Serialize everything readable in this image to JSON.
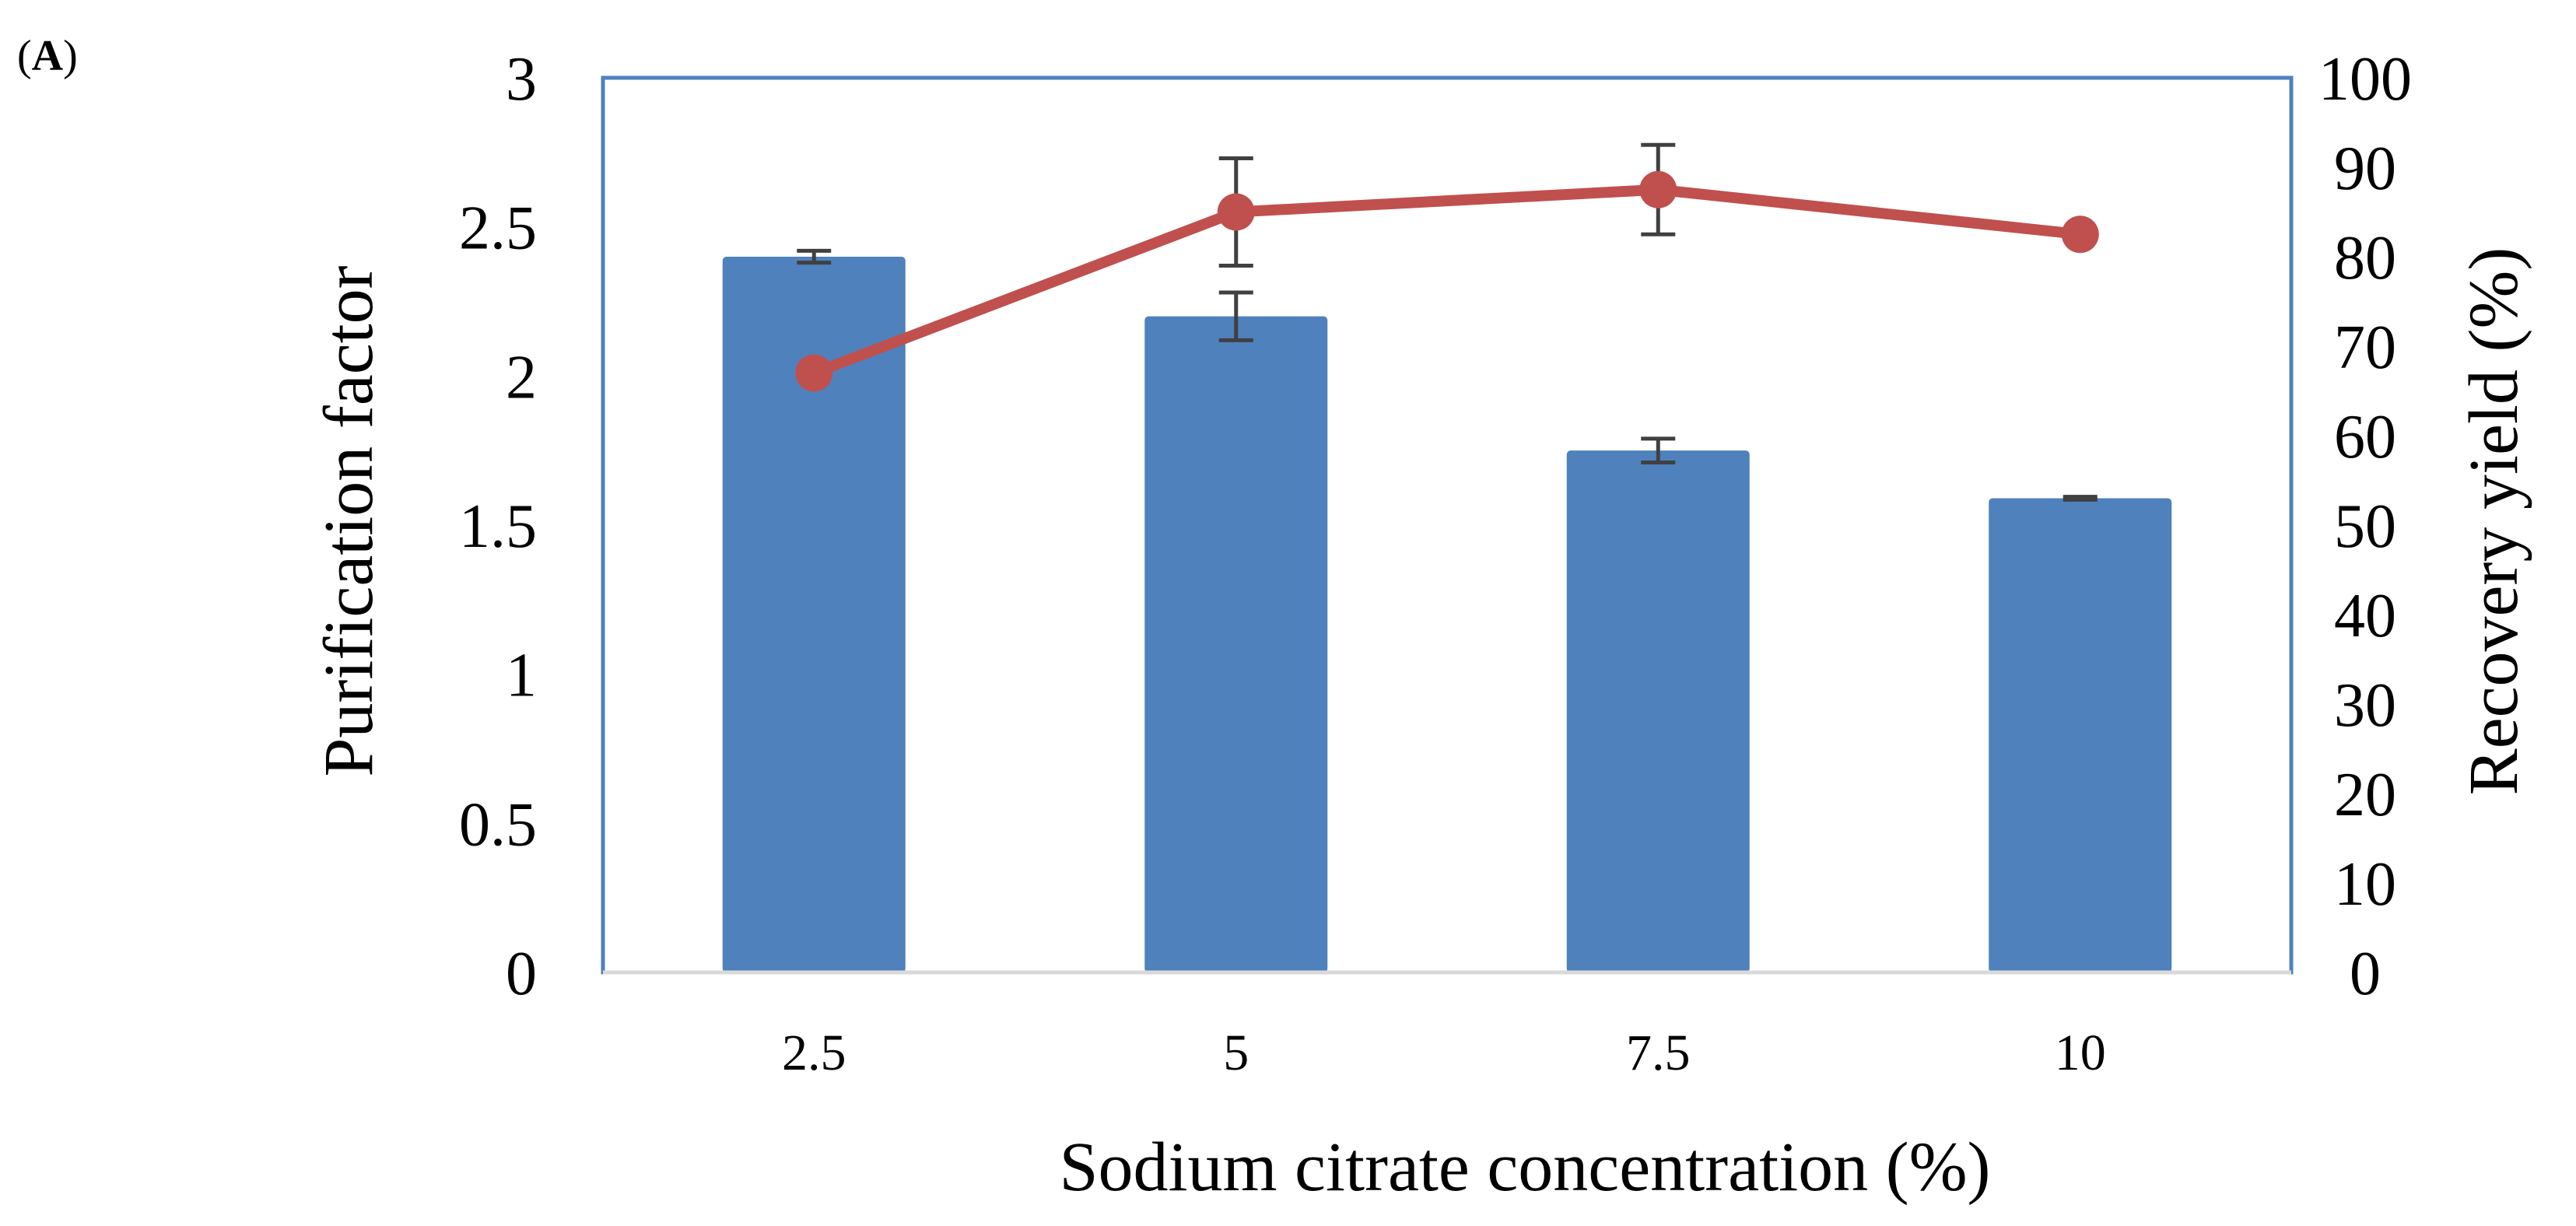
{
  "panel_label": {
    "open": "(",
    "letter": "A",
    "close": ")"
  },
  "colors": {
    "bar": "#4F81BD",
    "line": "#C0504D",
    "frame": "#4F81BD",
    "error_bar": "#404040",
    "baseline": "#D9D9D9"
  },
  "chart_data": {
    "type": "bar",
    "title": "",
    "xlabel": "Sodium citrate concentration (%)",
    "ylabel": "Purification factor",
    "y2label": "Recovery yield (%)",
    "categories": [
      "2.5",
      "5",
      "7.5",
      "10"
    ],
    "ylim": [
      0,
      3
    ],
    "yticks": [
      0,
      0.5,
      1,
      1.5,
      2,
      2.5,
      3
    ],
    "y2lim": [
      0,
      100
    ],
    "y2ticks": [
      0,
      10,
      20,
      30,
      40,
      50,
      60,
      70,
      80,
      90,
      100
    ],
    "grid": false,
    "legend": "none",
    "series": [
      {
        "name": "Purification factor",
        "type": "bar",
        "axis": "left",
        "values": [
          2.4,
          2.2,
          1.75,
          1.59
        ],
        "errors": [
          0.02,
          0.08,
          0.04,
          0.005
        ]
      },
      {
        "name": "Recovery yield (%)",
        "type": "line",
        "axis": "right",
        "values": [
          67,
          85,
          87.5,
          82.5
        ],
        "errors": [
          0,
          6,
          5,
          0
        ]
      }
    ]
  }
}
